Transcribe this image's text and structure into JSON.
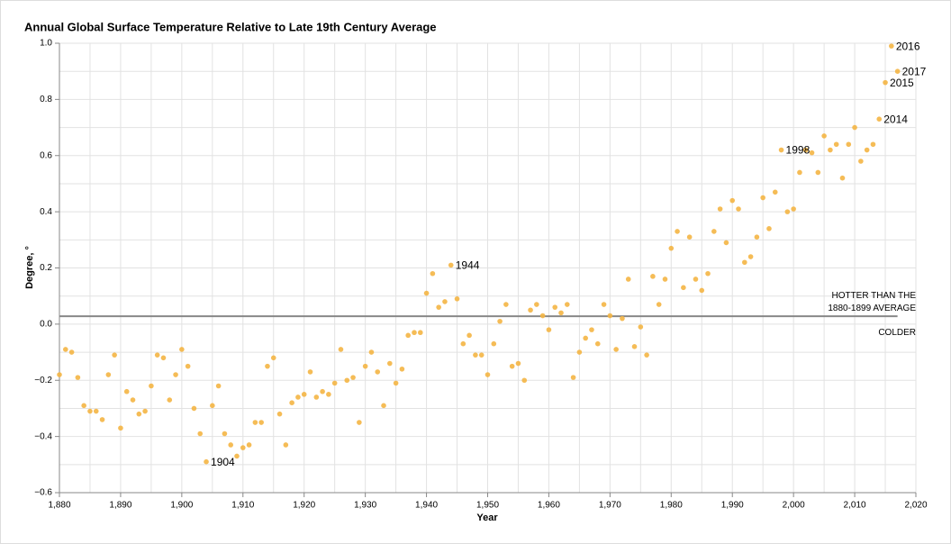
{
  "chart_data": {
    "type": "scatter",
    "title": "Annual Global Surface Temperature Relative to Late 19th Century Average",
    "x_label": "Year",
    "y_label": "Degree, °",
    "color": "#f4b544",
    "x": [
      1880,
      1881,
      1882,
      1883,
      1884,
      1885,
      1886,
      1887,
      1888,
      1889,
      1890,
      1891,
      1892,
      1893,
      1894,
      1895,
      1896,
      1897,
      1898,
      1899,
      1900,
      1901,
      1902,
      1903,
      1904,
      1905,
      1906,
      1907,
      1908,
      1909,
      1910,
      1911,
      1912,
      1913,
      1914,
      1915,
      1916,
      1917,
      1918,
      1919,
      1920,
      1921,
      1922,
      1923,
      1924,
      1925,
      1926,
      1927,
      1928,
      1929,
      1930,
      1931,
      1932,
      1933,
      1934,
      1935,
      1936,
      1937,
      1938,
      1939,
      1940,
      1941,
      1942,
      1943,
      1944,
      1945,
      1946,
      1947,
      1948,
      1949,
      1950,
      1951,
      1952,
      1953,
      1954,
      1955,
      1956,
      1957,
      1958,
      1959,
      1960,
      1961,
      1962,
      1963,
      1964,
      1965,
      1966,
      1967,
      1968,
      1969,
      1970,
      1971,
      1972,
      1973,
      1974,
      1975,
      1976,
      1977,
      1978,
      1979,
      1980,
      1981,
      1982,
      1983,
      1984,
      1985,
      1986,
      1987,
      1988,
      1989,
      1990,
      1991,
      1992,
      1993,
      1994,
      1995,
      1996,
      1997,
      1998,
      1999,
      2000,
      2001,
      2002,
      2003,
      2004,
      2005,
      2006,
      2007,
      2008,
      2009,
      2010,
      2011,
      2012,
      2013,
      2014,
      2015,
      2016,
      2017
    ],
    "values": [
      -0.18,
      -0.09,
      -0.1,
      -0.19,
      -0.29,
      -0.31,
      -0.31,
      -0.34,
      -0.18,
      -0.11,
      -0.37,
      -0.24,
      -0.27,
      -0.32,
      -0.31,
      -0.22,
      -0.11,
      -0.12,
      -0.27,
      -0.18,
      -0.09,
      -0.15,
      -0.3,
      -0.39,
      -0.49,
      -0.29,
      -0.22,
      -0.39,
      -0.43,
      -0.47,
      -0.44,
      -0.43,
      -0.35,
      -0.35,
      -0.15,
      -0.12,
      -0.32,
      -0.43,
      -0.28,
      -0.26,
      -0.25,
      -0.17,
      -0.26,
      -0.24,
      -0.25,
      -0.21,
      -0.09,
      -0.2,
      -0.19,
      -0.35,
      -0.15,
      -0.1,
      -0.17,
      -0.29,
      -0.14,
      -0.21,
      -0.16,
      -0.04,
      -0.03,
      -0.03,
      0.11,
      0.18,
      0.06,
      0.08,
      0.21,
      0.09,
      -0.07,
      -0.04,
      -0.11,
      -0.11,
      -0.18,
      -0.07,
      0.01,
      0.07,
      -0.15,
      -0.14,
      -0.2,
      0.05,
      0.07,
      0.03,
      -0.02,
      0.06,
      0.04,
      0.07,
      -0.19,
      -0.1,
      -0.05,
      -0.02,
      -0.07,
      0.07,
      0.03,
      -0.09,
      0.02,
      0.16,
      -0.08,
      -0.01,
      -0.11,
      0.17,
      0.07,
      0.16,
      0.27,
      0.33,
      0.13,
      0.31,
      0.16,
      0.12,
      0.18,
      0.33,
      0.41,
      0.29,
      0.44,
      0.41,
      0.22,
      0.24,
      0.31,
      0.45,
      0.34,
      0.47,
      0.62,
      0.4,
      0.41,
      0.54,
      0.62,
      0.61,
      0.54,
      0.67,
      0.62,
      0.64,
      0.52,
      0.64,
      0.7,
      0.58,
      0.62,
      0.64,
      0.73,
      0.86,
      0.99,
      0.9
    ],
    "label_points": [
      1904,
      1944,
      1998,
      2014,
      2015,
      2016,
      2017
    ],
    "reference_line": {
      "value": 0.028,
      "label_above": [
        "HOTTER THAN THE",
        "1880-1899 AVERAGE"
      ],
      "label_below": "COLDER"
    },
    "xlim": [
      1880,
      2020
    ],
    "xticks": [
      {
        "value": 1880,
        "label": "1,880"
      },
      {
        "value": 1890,
        "label": "1,890"
      },
      {
        "value": 1900,
        "label": "1,900"
      },
      {
        "value": 1910,
        "label": "1,910"
      },
      {
        "value": 1920,
        "label": "1,920"
      },
      {
        "value": 1930,
        "label": "1,930"
      },
      {
        "value": 1940,
        "label": "1,940"
      },
      {
        "value": 1950,
        "label": "1,950"
      },
      {
        "value": 1960,
        "label": "1,960"
      },
      {
        "value": 1970,
        "label": "1,970"
      },
      {
        "value": 1980,
        "label": "1,980"
      },
      {
        "value": 1990,
        "label": "1,990"
      },
      {
        "value": 2000,
        "label": "2,000"
      },
      {
        "value": 2010,
        "label": "2,010"
      },
      {
        "value": 2020,
        "label": "2,020"
      }
    ],
    "x_minor_ticks": [
      1885,
      1895,
      1905,
      1915,
      1925,
      1935,
      1945,
      1955,
      1965,
      1975,
      1985,
      1995,
      2005,
      2015
    ],
    "ylim": [
      -0.6,
      1.0
    ],
    "yticks": [
      {
        "value": 1.0,
        "label": "1.0"
      },
      0.8,
      0.6,
      0.4,
      0.2,
      {
        "value": 0.0,
        "label": "0.0"
      },
      {
        "value": -0.2,
        "label": "−0.2"
      },
      {
        "value": -0.4,
        "label": "−0.4"
      },
      {
        "value": -0.6,
        "label": "−0.6"
      }
    ],
    "y_minor_ticks": [
      0.9,
      0.7,
      0.5,
      0.3,
      0.1,
      -0.1,
      -0.3,
      -0.5
    ],
    "grid": true
  }
}
